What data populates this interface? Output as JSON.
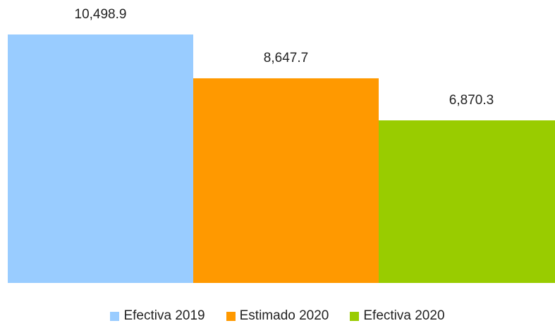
{
  "chart_data": {
    "type": "bar",
    "categories": [
      "Efectiva 2019",
      "Estimado 2020",
      "Efectiva 2020"
    ],
    "series": [
      {
        "values": [
          10498.9,
          8647.7,
          6870.3
        ]
      }
    ],
    "data_labels": [
      "10,498.9",
      "8,647.7",
      "6,870.3"
    ],
    "colors": [
      "#99ccff",
      "#ff9900",
      "#99cc00"
    ],
    "ylim": [
      0,
      10498.9
    ],
    "grid": false,
    "legend_position": "bottom",
    "title": "",
    "xlabel": "",
    "ylabel": ""
  }
}
